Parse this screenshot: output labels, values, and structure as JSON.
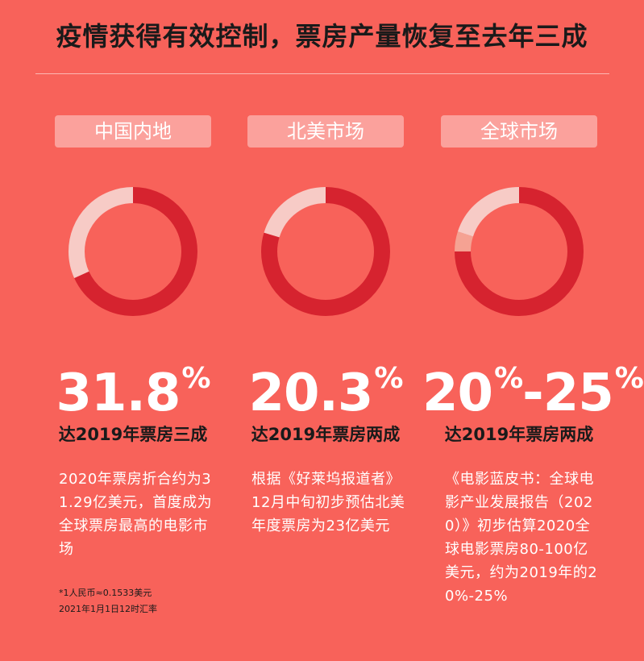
{
  "title": "疫情获得有效控制，票房产量恢复至去年三成",
  "colors": {
    "background": "#f8625a",
    "ring_dark": "#d6232f",
    "ring_light": "#f7cbc6",
    "ring_mid": "#f5a293",
    "pill": "#fba19c"
  },
  "markets": [
    {
      "name": "中国内地",
      "percent_value": "31.8",
      "percent_sign": "%",
      "share": 0.318,
      "subtitle": "达2019年票房三成",
      "description": "2020年票房折合约为31.29亿美元，首度成为全球票房最高的电影市场",
      "footnote_line1": "*1人民币≈0.1533美元",
      "footnote_line2": "2021年1月1日12时汇率"
    },
    {
      "name": "北美市场",
      "percent_value": "20.3",
      "percent_sign": "%",
      "share": 0.203,
      "subtitle": "达2019年票房两成",
      "description": "根据《好莱坞报道者》12月中旬初步预估北美年度票房为23亿美元"
    },
    {
      "name": "全球市场",
      "percent_value": "20",
      "percent_sign": "%",
      "percent_suffix": "-25",
      "percent_sign2": "%",
      "share_low": 0.2,
      "share_high": 0.25,
      "subtitle": "达2019年票房两成",
      "description": "《电影蓝皮书：全球电影产业发展报告（2020）》初步估算2020全球电影票房80-100亿美元，约为2019年的20%-25%"
    }
  ]
}
